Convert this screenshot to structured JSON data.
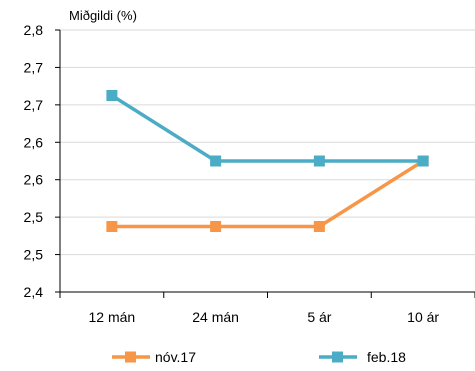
{
  "chart_data": {
    "type": "line",
    "categories": [
      "12 mán",
      "24 mán",
      "5 ár",
      "10 ár"
    ],
    "ylabel": "Miðgildi (%)",
    "ylim": [
      2.4,
      2.8
    ],
    "yticks": [
      "2,4",
      "2,5",
      "2,5",
      "2,6",
      "2,6",
      "2,7",
      "2,7",
      "2,8"
    ],
    "grid": "horizontal",
    "legend": "bottom",
    "series": [
      {
        "name": "nóv.17",
        "color": "#F79646",
        "values": [
          2.5,
          2.5,
          2.5,
          2.6
        ]
      },
      {
        "name": "feb.18",
        "color": "#4BACC6",
        "values": [
          2.7,
          2.6,
          2.6,
          2.6
        ]
      }
    ]
  }
}
